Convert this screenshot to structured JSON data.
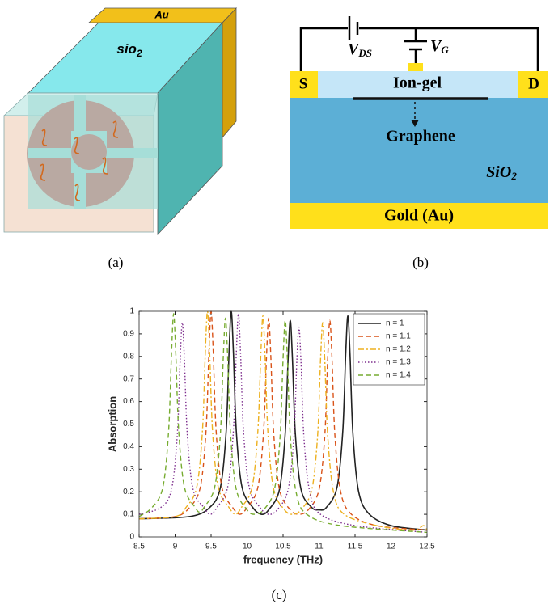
{
  "figure": {
    "panel_a": {
      "label": "(a)",
      "top_layer": "Au",
      "block_label": {
        "base": "sio",
        "sub": "2"
      }
    },
    "panel_b": {
      "label": "(b)",
      "vds": {
        "base": "V",
        "sub": "DS"
      },
      "vg": {
        "base": "V",
        "sub": "G"
      },
      "source": "S",
      "drain": "D",
      "gate_layer": "Ion-gel",
      "channel": "Graphene",
      "substrate": {
        "base": "SiO",
        "sub": "2"
      },
      "back_layer": "Gold (Au)"
    },
    "panel_c_label": "(c)"
  },
  "chart_data": {
    "type": "line",
    "xlabel": "frequency (THz)",
    "ylabel": "Absorption",
    "xlim": [
      8.5,
      12.5
    ],
    "xticks": [
      8.5,
      9,
      9.5,
      10,
      10.5,
      11,
      11.5,
      12,
      12.5
    ],
    "ylim": [
      0,
      1
    ],
    "yticks": [
      0,
      0.1,
      0.2,
      0.3,
      0.4,
      0.5,
      0.6,
      0.7,
      0.8,
      0.9,
      1
    ],
    "grid": false,
    "legend": "northeast",
    "series": [
      {
        "name": "n = 1",
        "color": "#222222",
        "dash": "solid",
        "x": [
          8.5,
          9.2,
          9.48,
          9.63,
          9.71,
          9.75,
          9.78,
          9.81,
          9.85,
          9.93,
          10.08,
          10.2,
          10.3,
          10.45,
          10.53,
          10.57,
          10.6,
          10.63,
          10.67,
          10.75,
          10.9,
          11.0,
          11.1,
          11.25,
          11.33,
          11.37,
          11.4,
          11.43,
          11.47,
          11.55,
          11.7,
          12.0,
          12.5
        ],
        "values": [
          0.08,
          0.09,
          0.13,
          0.22,
          0.47,
          0.82,
          1,
          0.82,
          0.47,
          0.22,
          0.13,
          0.1,
          0.12,
          0.21,
          0.46,
          0.79,
          0.96,
          0.79,
          0.46,
          0.21,
          0.13,
          0.12,
          0.13,
          0.22,
          0.47,
          0.81,
          0.98,
          0.81,
          0.46,
          0.2,
          0.1,
          0.05,
          0.03
        ]
      },
      {
        "name": "n = 1.1",
        "color": "#d95319",
        "dash": "dashed",
        "x": [
          8.5,
          9.0,
          9.2,
          9.35,
          9.43,
          9.47,
          9.5,
          9.53,
          9.57,
          9.65,
          9.8,
          9.9,
          10.0,
          10.15,
          10.23,
          10.27,
          10.3,
          10.33,
          10.37,
          10.45,
          10.6,
          10.72,
          10.85,
          11.0,
          11.08,
          11.12,
          11.15,
          11.18,
          11.22,
          11.3,
          11.45,
          11.8,
          12.5
        ],
        "values": [
          0.08,
          0.09,
          0.13,
          0.22,
          0.47,
          0.82,
          1,
          0.82,
          0.47,
          0.22,
          0.13,
          0.1,
          0.13,
          0.22,
          0.47,
          0.8,
          0.97,
          0.8,
          0.46,
          0.21,
          0.12,
          0.1,
          0.12,
          0.21,
          0.45,
          0.79,
          0.96,
          0.79,
          0.45,
          0.2,
          0.1,
          0.05,
          0.03
        ]
      },
      {
        "name": "n = 1.2",
        "color": "#edb120",
        "dash": "dashdot",
        "x": [
          8.5,
          9.0,
          9.15,
          9.3,
          9.38,
          9.42,
          9.45,
          9.48,
          9.52,
          9.6,
          9.75,
          9.84,
          9.92,
          10.07,
          10.15,
          10.19,
          10.22,
          10.25,
          10.29,
          10.37,
          10.52,
          10.63,
          10.75,
          10.9,
          10.98,
          11.02,
          11.05,
          11.08,
          11.12,
          11.2,
          11.35,
          11.8,
          12.3,
          12.45,
          12.5
        ],
        "values": [
          0.08,
          0.09,
          0.13,
          0.22,
          0.47,
          0.82,
          1,
          0.82,
          0.47,
          0.22,
          0.13,
          0.1,
          0.13,
          0.22,
          0.47,
          0.8,
          0.98,
          0.8,
          0.46,
          0.21,
          0.12,
          0.1,
          0.12,
          0.21,
          0.45,
          0.78,
          0.95,
          0.78,
          0.45,
          0.2,
          0.1,
          0.05,
          0.03,
          0.05,
          0.03
        ]
      },
      {
        "name": "n = 1.3",
        "color": "#7e2f8e",
        "dash": "dotted",
        "x": [
          8.5,
          8.8,
          8.95,
          9.03,
          9.07,
          9.1,
          9.13,
          9.17,
          9.25,
          9.4,
          9.49,
          9.58,
          9.73,
          9.81,
          9.85,
          9.88,
          9.91,
          9.95,
          10.03,
          10.18,
          10.3,
          10.42,
          10.57,
          10.65,
          10.69,
          10.72,
          10.75,
          10.79,
          10.87,
          11.02,
          11.5,
          12.5
        ],
        "values": [
          0.1,
          0.13,
          0.21,
          0.45,
          0.78,
          0.95,
          0.78,
          0.45,
          0.21,
          0.13,
          0.1,
          0.13,
          0.22,
          0.47,
          0.81,
          0.99,
          0.81,
          0.47,
          0.22,
          0.13,
          0.1,
          0.12,
          0.21,
          0.44,
          0.77,
          0.93,
          0.77,
          0.44,
          0.2,
          0.1,
          0.05,
          0.02
        ]
      },
      {
        "name": "n = 1.4",
        "color": "#77ac30",
        "dash": "dashed",
        "x": [
          8.5,
          8.68,
          8.83,
          8.91,
          8.95,
          8.98,
          9.01,
          9.05,
          9.13,
          9.28,
          9.34,
          9.4,
          9.55,
          9.63,
          9.67,
          9.7,
          9.73,
          9.77,
          9.85,
          10.0,
          10.1,
          10.23,
          10.38,
          10.46,
          10.5,
          10.53,
          10.56,
          10.6,
          10.68,
          10.83,
          11.3,
          12.5
        ],
        "values": [
          0.09,
          0.13,
          0.22,
          0.47,
          0.81,
          0.99,
          0.81,
          0.47,
          0.22,
          0.13,
          0.11,
          0.13,
          0.22,
          0.46,
          0.8,
          0.97,
          0.8,
          0.46,
          0.21,
          0.12,
          0.1,
          0.12,
          0.21,
          0.45,
          0.79,
          0.96,
          0.79,
          0.45,
          0.2,
          0.1,
          0.05,
          0.02
        ]
      }
    ]
  }
}
